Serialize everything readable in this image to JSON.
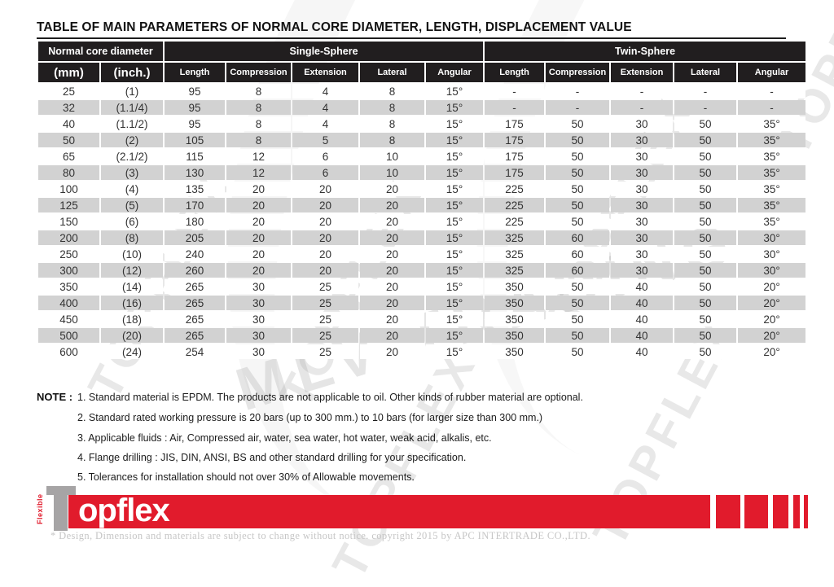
{
  "page": {
    "title": "TABLE OF MAIN PARAMETERS OF NORMAL CORE DIAMETER, LENGTH, DISPLACEMENT VALUE"
  },
  "table": {
    "groups": [
      {
        "label": "Normal core diameter"
      },
      {
        "label": "Single-Sphere"
      },
      {
        "label": "Twin-Sphere"
      }
    ],
    "columns": [
      "(mm)",
      "(inch.)",
      "Length",
      "Compression",
      "Extension",
      "Lateral",
      "Angular",
      "Length",
      "Compression",
      "Extension",
      "Lateral",
      "Angular"
    ],
    "rows": [
      [
        "25",
        "(1)",
        "95",
        "8",
        "4",
        "8",
        "15°",
        "-",
        "-",
        "-",
        "-",
        "-"
      ],
      [
        "32",
        "(1.1/4)",
        "95",
        "8",
        "4",
        "8",
        "15°",
        "-",
        "-",
        "-",
        "-",
        "-"
      ],
      [
        "40",
        "(1.1/2)",
        "95",
        "8",
        "4",
        "8",
        "15°",
        "175",
        "50",
        "30",
        "50",
        "35°"
      ],
      [
        "50",
        "(2)",
        "105",
        "8",
        "5",
        "8",
        "15°",
        "175",
        "50",
        "30",
        "50",
        "35°"
      ],
      [
        "65",
        "(2.1/2)",
        "115",
        "12",
        "6",
        "10",
        "15°",
        "175",
        "50",
        "30",
        "50",
        "35°"
      ],
      [
        "80",
        "(3)",
        "130",
        "12",
        "6",
        "10",
        "15°",
        "175",
        "50",
        "30",
        "50",
        "35°"
      ],
      [
        "100",
        "(4)",
        "135",
        "20",
        "20",
        "20",
        "15°",
        "225",
        "50",
        "30",
        "50",
        "35°"
      ],
      [
        "125",
        "(5)",
        "170",
        "20",
        "20",
        "20",
        "15°",
        "225",
        "50",
        "30",
        "50",
        "35°"
      ],
      [
        "150",
        "(6)",
        "180",
        "20",
        "20",
        "20",
        "15°",
        "225",
        "50",
        "30",
        "50",
        "35°"
      ],
      [
        "200",
        "(8)",
        "205",
        "20",
        "20",
        "20",
        "15°",
        "325",
        "60",
        "30",
        "50",
        "30°"
      ],
      [
        "250",
        "(10)",
        "240",
        "20",
        "20",
        "20",
        "15°",
        "325",
        "60",
        "30",
        "50",
        "30°"
      ],
      [
        "300",
        "(12)",
        "260",
        "20",
        "20",
        "20",
        "15°",
        "325",
        "60",
        "30",
        "50",
        "30°"
      ],
      [
        "350",
        "(14)",
        "265",
        "30",
        "25",
        "20",
        "15°",
        "350",
        "50",
        "40",
        "50",
        "20°"
      ],
      [
        "400",
        "(16)",
        "265",
        "30",
        "25",
        "20",
        "15°",
        "350",
        "50",
        "40",
        "50",
        "20°"
      ],
      [
        "450",
        "(18)",
        "265",
        "30",
        "25",
        "20",
        "15°",
        "350",
        "50",
        "40",
        "50",
        "20°"
      ],
      [
        "500",
        "(20)",
        "265",
        "30",
        "25",
        "20",
        "15°",
        "350",
        "50",
        "40",
        "50",
        "20°"
      ],
      [
        "600",
        "(24)",
        "254",
        "30",
        "25",
        "20",
        "15°",
        "350",
        "50",
        "40",
        "50",
        "20°"
      ]
    ]
  },
  "notes": {
    "heading": "NOTE :",
    "items": [
      "1. Standard material is EPDM. The products are not applicable to oil. Other kinds of rubber material are optional.",
      "2. Standard rated working pressure is 20 bars (up to 300 mm.) to 10 bars (for larger size than 300 mm.)",
      "3. Applicable fluids : Air, Compressed air, water, sea water, hot water, weak acid, alkalis, etc.",
      "4. Flange drilling : JIS, DIN, ANSI, BS and other standard drilling for your specification.",
      "5. Tolerances for installation should not over 30% of Allowable movements."
    ]
  },
  "footer": {
    "brand_vertical": "Flexible",
    "brand_word": "opflex",
    "copyright": "* Design, Dimension and materials are subject to change without notice. copyright 2015 by APC INTERTRADE CO.,LTD."
  },
  "watermarks": [
    "TOPFLEX",
    "TOPFLEX",
    "MLV TRADING",
    "TOPFLEX",
    "TOPFLEX",
    "TOPFLEX",
    "TOPFLEX"
  ],
  "colors": {
    "accent_red": "#e11b2c",
    "header_black": "#211e1f",
    "stripe_gray": "#d2d2d2",
    "logo_gray": "#a6a4a5"
  }
}
